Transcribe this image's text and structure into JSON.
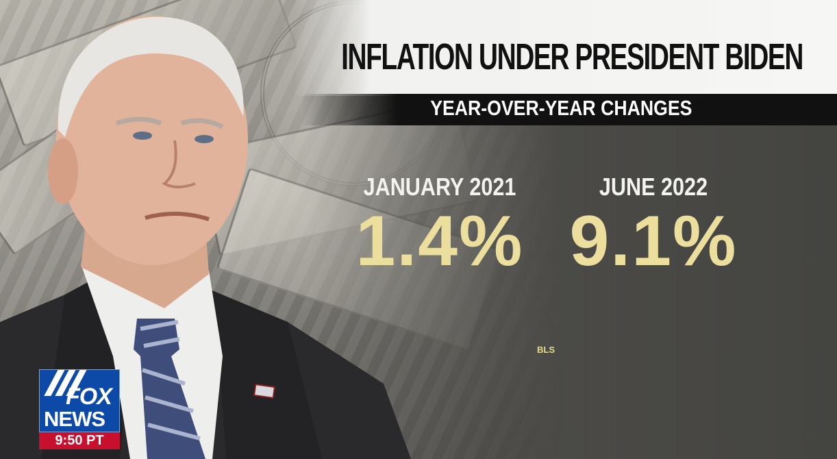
{
  "graphic": {
    "title": "INFLATION UNDER PRESIDENT BIDEN",
    "subtitle": "YEAR-OVER-YEAR CHANGES",
    "stats": [
      {
        "label": "JANUARY 2021",
        "value": "1.4%"
      },
      {
        "label": "JUNE 2022",
        "value": "9.1%"
      }
    ],
    "source": "BLS"
  },
  "network_bug": {
    "brand_top": "FOX",
    "brand_bottom": "NEWS",
    "time": "9:50 PT"
  },
  "colors": {
    "value_yellow": "#ecdf9d",
    "panel_gray": "#4c4b48",
    "fox_blue": "#0d4aa8",
    "fox_red": "#c8102e"
  }
}
